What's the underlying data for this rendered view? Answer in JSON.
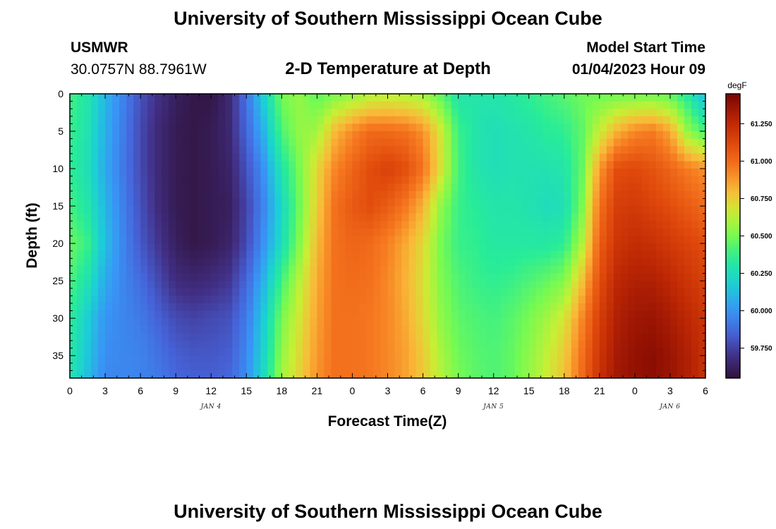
{
  "header": {
    "title": "University of Southern Mississippi Ocean Cube",
    "station_id": "USMWR",
    "coordinates": "30.0757N  88.7961W",
    "subtitle": "2-D Temperature at Depth",
    "start_label": "Model Start Time",
    "start_value": "01/04/2023 Hour 09"
  },
  "footer": {
    "title": "University of Southern Mississippi Ocean Cube"
  },
  "chart_data": {
    "type": "heatmap",
    "xlabel": "Forecast Time(Z)",
    "ylabel": "Depth (ft)",
    "x_range_hours": [
      0,
      54
    ],
    "x_tick_labels": [
      "0",
      "3",
      "6",
      "9",
      "12",
      "15",
      "18",
      "21",
      "0",
      "3",
      "6",
      "9",
      "12",
      "15",
      "18",
      "21",
      "0",
      "3",
      "6"
    ],
    "day_labels": [
      {
        "label": "JAN 4",
        "hour": 12
      },
      {
        "label": "JAN 5",
        "hour": 36
      },
      {
        "label": "JAN 6",
        "hour": 51
      }
    ],
    "y_range_ft": [
      0,
      38
    ],
    "y_ticks": [
      0,
      5,
      10,
      15,
      20,
      25,
      30,
      35
    ],
    "colorbar": {
      "unit": "degF",
      "range": [
        59.55,
        61.45
      ],
      "ticks": [
        "59.750",
        "60.000",
        "60.250",
        "60.500",
        "60.750",
        "61.000",
        "61.250"
      ]
    },
    "temperature_samples_degF": {
      "hours": [
        0,
        1.5,
        3,
        4.5,
        6,
        7.5,
        9,
        10.5,
        12,
        13.5,
        15,
        16.5,
        18,
        19.5,
        21,
        22.5,
        24,
        25.5,
        27,
        28.5,
        30,
        31.5,
        33,
        34.5,
        36,
        37.5,
        39,
        40.5,
        42,
        43.5,
        45,
        46.5,
        48,
        49.5,
        51,
        52.5,
        54
      ],
      "depths_ft": [
        0,
        5,
        10,
        15,
        20,
        25,
        30,
        35,
        38
      ],
      "values": [
        [
          60.4,
          60.38,
          60.36,
          60.4,
          60.47,
          60.42,
          60.35,
          60.32,
          60.3
        ],
        [
          60.3,
          60.28,
          60.26,
          60.3,
          60.38,
          60.28,
          60.18,
          60.15,
          60.12
        ],
        [
          60.1,
          60.08,
          60.06,
          60.1,
          60.12,
          60.06,
          60.0,
          59.98,
          59.96
        ],
        [
          59.95,
          59.93,
          59.92,
          59.94,
          59.96,
          59.96,
          59.96,
          59.96,
          59.96
        ],
        [
          59.8,
          59.78,
          59.78,
          59.8,
          59.82,
          59.88,
          59.92,
          59.95,
          59.95
        ],
        [
          59.7,
          59.67,
          59.67,
          59.68,
          59.72,
          59.78,
          59.85,
          59.9,
          59.92
        ],
        [
          59.62,
          59.6,
          59.6,
          59.6,
          59.62,
          59.68,
          59.78,
          59.84,
          59.86
        ],
        [
          59.58,
          59.58,
          59.58,
          59.58,
          59.58,
          59.66,
          59.76,
          59.82,
          59.84
        ],
        [
          59.57,
          59.6,
          59.6,
          59.6,
          59.6,
          59.68,
          59.78,
          59.82,
          59.84
        ],
        [
          59.66,
          59.66,
          59.64,
          59.62,
          59.64,
          59.72,
          59.8,
          59.84,
          59.86
        ],
        [
          59.9,
          59.86,
          59.8,
          59.76,
          59.78,
          59.86,
          59.92,
          59.96,
          59.98
        ],
        [
          60.2,
          60.1,
          60.0,
          59.96,
          60.0,
          60.1,
          60.18,
          60.22,
          60.24
        ],
        [
          60.5,
          60.42,
          60.3,
          60.22,
          60.25,
          60.4,
          60.5,
          60.55,
          60.58
        ],
        [
          60.55,
          60.55,
          60.5,
          60.48,
          60.52,
          60.62,
          60.68,
          60.72,
          60.74
        ],
        [
          60.45,
          60.58,
          60.72,
          60.75,
          60.8,
          60.84,
          60.86,
          60.88,
          60.9
        ],
        [
          60.5,
          60.8,
          60.92,
          60.98,
          60.98,
          60.98,
          60.98,
          60.98,
          60.98
        ],
        [
          60.55,
          60.92,
          61.02,
          61.06,
          61.02,
          61.0,
          60.98,
          60.98,
          60.98
        ],
        [
          60.6,
          61.0,
          61.1,
          61.1,
          61.0,
          60.98,
          60.96,
          60.96,
          60.96
        ],
        [
          60.62,
          61.0,
          61.15,
          61.05,
          60.94,
          60.92,
          60.92,
          60.92,
          60.92
        ],
        [
          60.6,
          60.98,
          61.1,
          60.96,
          60.84,
          60.82,
          60.84,
          60.86,
          60.86
        ],
        [
          60.58,
          60.9,
          60.98,
          60.82,
          60.72,
          60.7,
          60.72,
          60.76,
          60.76
        ],
        [
          60.45,
          60.68,
          60.7,
          60.55,
          60.5,
          60.52,
          60.55,
          60.6,
          60.62
        ],
        [
          60.3,
          60.38,
          60.4,
          60.38,
          60.38,
          60.42,
          60.45,
          60.48,
          60.5
        ],
        [
          60.3,
          60.3,
          60.3,
          60.34,
          60.36,
          60.38,
          60.42,
          60.44,
          60.45
        ],
        [
          60.3,
          60.26,
          60.26,
          60.3,
          60.32,
          60.36,
          60.4,
          60.42,
          60.42
        ],
        [
          60.32,
          60.28,
          60.28,
          60.3,
          60.32,
          60.38,
          60.44,
          60.46,
          60.46
        ],
        [
          60.36,
          60.3,
          60.28,
          60.28,
          60.32,
          60.42,
          60.5,
          60.54,
          60.55
        ],
        [
          60.4,
          60.34,
          60.28,
          60.25,
          60.32,
          60.46,
          60.58,
          60.64,
          60.66
        ],
        [
          60.44,
          60.36,
          60.3,
          60.26,
          60.35,
          60.52,
          60.68,
          60.76,
          60.78
        ],
        [
          60.48,
          60.45,
          60.46,
          60.5,
          60.6,
          60.78,
          60.92,
          60.98,
          61.0
        ],
        [
          60.48,
          60.65,
          60.88,
          60.98,
          61.04,
          61.1,
          61.16,
          61.2,
          61.22
        ],
        [
          60.48,
          60.82,
          61.1,
          61.16,
          61.2,
          61.26,
          61.3,
          61.33,
          61.34
        ],
        [
          60.48,
          60.92,
          61.12,
          61.18,
          61.24,
          61.3,
          61.35,
          61.38,
          61.38
        ],
        [
          60.48,
          60.95,
          61.08,
          61.14,
          61.22,
          61.3,
          61.36,
          61.4,
          61.4
        ],
        [
          60.45,
          60.85,
          61.02,
          61.1,
          61.18,
          61.26,
          61.32,
          61.36,
          61.36
        ],
        [
          60.32,
          60.55,
          60.95,
          61.05,
          61.14,
          61.2,
          61.26,
          61.3,
          61.3
        ],
        [
          60.1,
          60.4,
          60.9,
          61.0,
          61.1,
          61.15,
          61.2,
          61.22,
          61.22
        ]
      ]
    }
  }
}
